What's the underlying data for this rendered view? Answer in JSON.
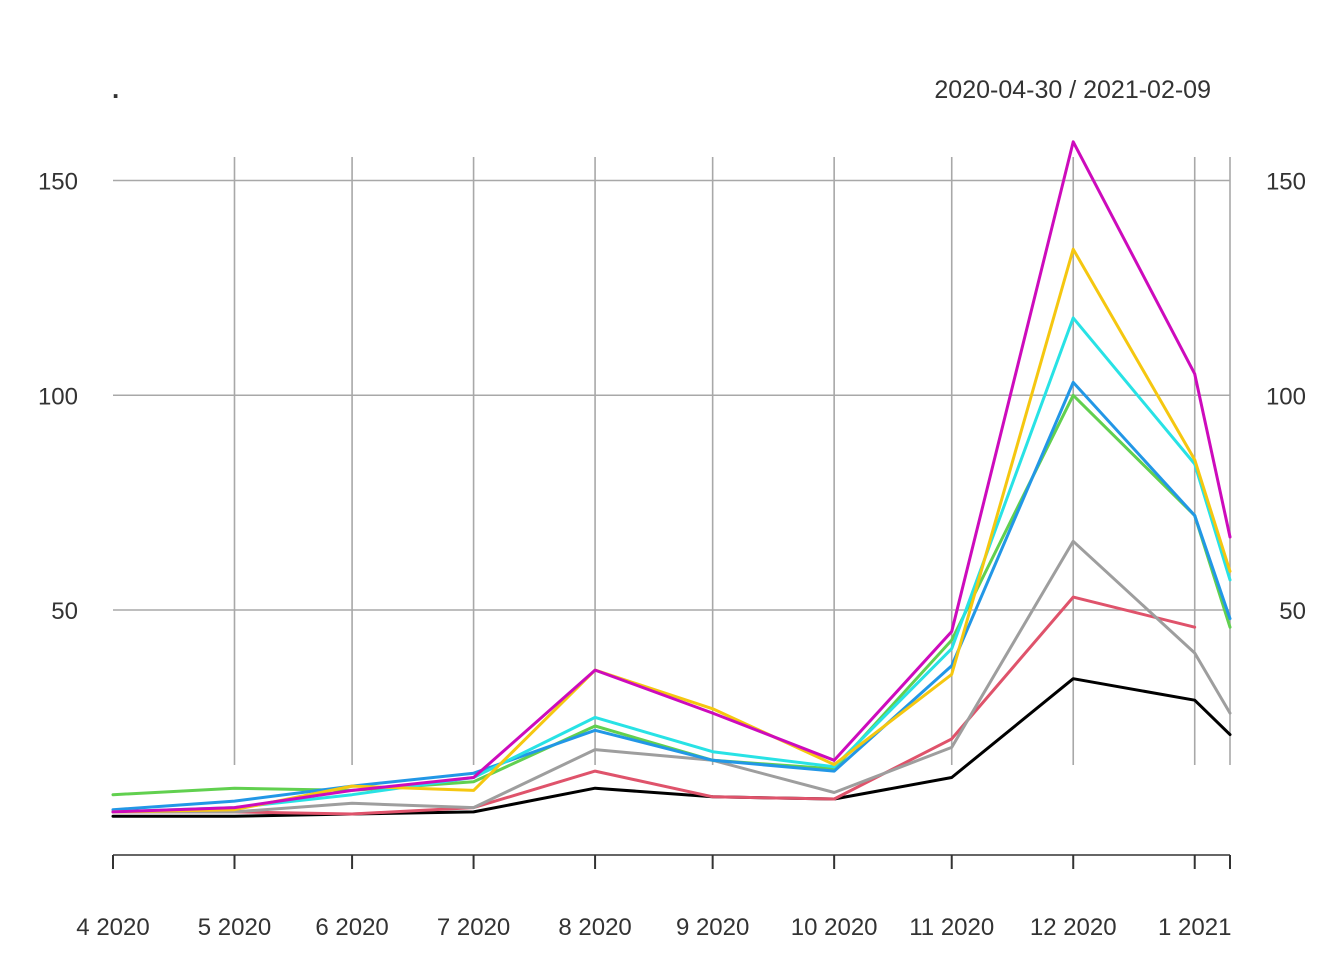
{
  "chart_data": {
    "type": "line",
    "title": ".",
    "date_range": "2020-04-30 / 2021-02-09",
    "xlabel": "",
    "ylabel": "",
    "x": [
      "2020-04-30",
      "2020-05-31",
      "2020-06-30",
      "2020-07-31",
      "2020-08-31",
      "2020-09-30",
      "2020-10-31",
      "2020-11-30",
      "2020-12-31",
      "2021-01-31",
      "2021-02-09"
    ],
    "x_tick_labels": [
      "4 2020",
      "5 2020",
      "6 2020",
      "7 2020",
      "8 2020",
      "9 2020",
      "10 2020",
      "11 2020",
      "12 2020",
      "1 2021"
    ],
    "y_ticks": [
      50,
      100,
      150
    ],
    "ylim": [
      -6,
      160
    ],
    "grid": true,
    "legend": "none",
    "series": [
      {
        "color": "#000000",
        "values": [
          2,
          2,
          2.5,
          3,
          8.5,
          6.5,
          6,
          11,
          34,
          29,
          21
        ]
      },
      {
        "color": "#DF536B",
        "values": [
          3,
          3,
          2.5,
          4,
          12.5,
          6.5,
          6,
          20,
          53,
          46,
          null
        ]
      },
      {
        "color": "#9E9E9E",
        "values": [
          3,
          3,
          5,
          4,
          17.5,
          15,
          7.5,
          18,
          66,
          40,
          26
        ]
      },
      {
        "color": "#61D04F",
        "values": [
          7,
          8.5,
          8,
          10,
          23,
          15,
          13,
          43,
          100,
          72,
          46
        ]
      },
      {
        "color": "#2297E6",
        "values": [
          3.5,
          5.5,
          9,
          12,
          22,
          15,
          12.5,
          37,
          103,
          72,
          48
        ]
      },
      {
        "color": "#28E2E5",
        "values": [
          3,
          4,
          7,
          11,
          25,
          17,
          13.5,
          41,
          118,
          84,
          57
        ]
      },
      {
        "color": "#F5C710",
        "values": [
          3,
          3.5,
          9,
          8,
          36,
          27,
          14,
          35,
          134,
          85,
          59
        ]
      },
      {
        "color": "#CD0BBC",
        "values": [
          3,
          4,
          8,
          11,
          36,
          26,
          15,
          45,
          159,
          105,
          67
        ]
      }
    ]
  }
}
